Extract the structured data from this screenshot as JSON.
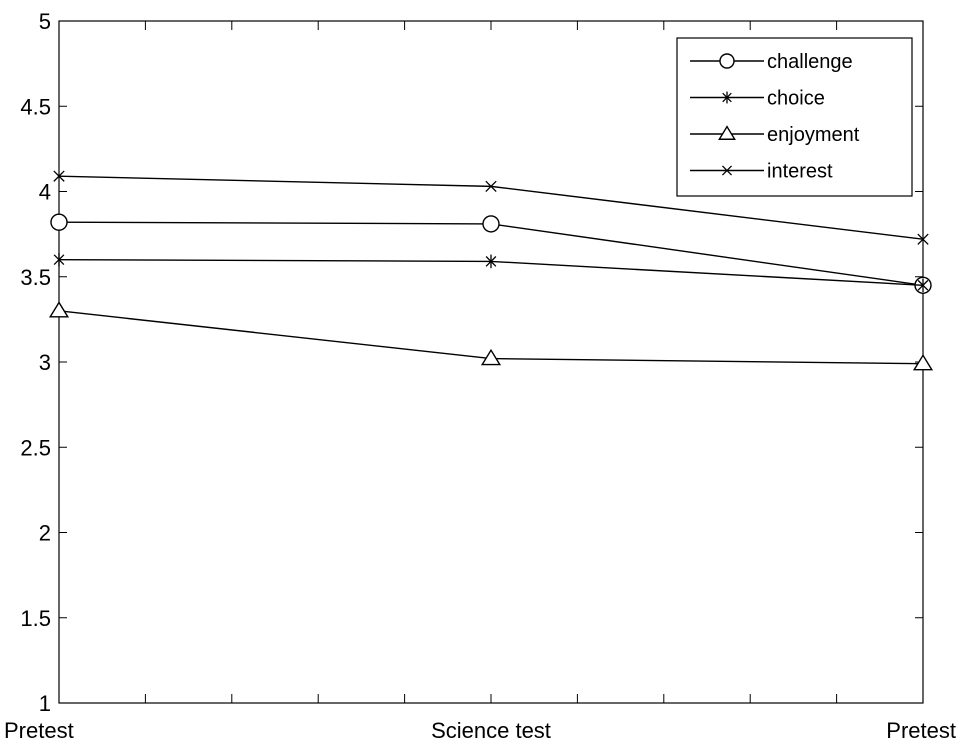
{
  "chart_data": {
    "type": "line",
    "title": "",
    "xlabel": "",
    "ylabel": "",
    "categories": [
      "Pretest",
      "Science test",
      "Pretest"
    ],
    "ylim": [
      1,
      5
    ],
    "yticks": [
      1,
      1.5,
      2,
      2.5,
      3,
      3.5,
      4,
      4.5,
      5
    ],
    "ytick_labels": [
      "1",
      "1.5",
      "2",
      "2.5",
      "3",
      "3.5",
      "4",
      "4.5",
      "5"
    ],
    "grid": false,
    "legend_position": "top-right",
    "series": [
      {
        "name": "challenge",
        "marker": "circle",
        "values": [
          3.82,
          3.81,
          3.45
        ]
      },
      {
        "name": "choice",
        "marker": "asterisk",
        "values": [
          3.6,
          3.59,
          3.45
        ]
      },
      {
        "name": "enjoyment",
        "marker": "triangle",
        "values": [
          3.3,
          3.02,
          2.99
        ]
      },
      {
        "name": "interest",
        "marker": "x",
        "values": [
          4.09,
          4.03,
          3.72
        ]
      }
    ],
    "colors": {
      "line": "#000000",
      "background": "#ffffff"
    }
  }
}
